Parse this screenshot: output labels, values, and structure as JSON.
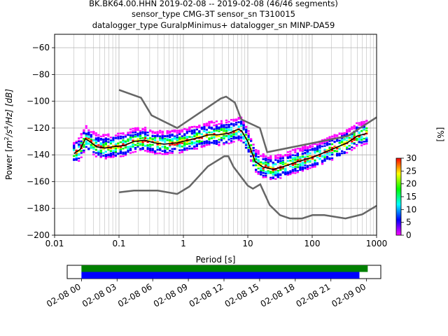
{
  "title_lines": [
    "BK.BK64.00.HHN   2019-02-08 -- 2019-02-08  (46/46 segments)",
    "sensor_type CMG-3T sensor_sn T310015",
    "datalogger_type GuralpMinimus+ datalogger_sn MINP-DA59"
  ],
  "chart_data": {
    "type": "heatmap",
    "xlabel": "Period [s]",
    "ylabel_parts": {
      "main": "Power [",
      "m2": "m",
      "sup2": "2",
      "s": "/s",
      "sup4": "4",
      "hz": "/Hz] [dB]"
    },
    "xscale": "log",
    "xlim": [
      0.01,
      1000
    ],
    "ylim": [
      -200,
      -50
    ],
    "x_ticks": [
      0.01,
      0.1,
      1,
      10,
      100,
      1000
    ],
    "x_tick_labels": [
      "0.01",
      "0.1",
      "1",
      "10",
      "100",
      "1000"
    ],
    "y_ticks": [
      -200,
      -180,
      -160,
      -140,
      -120,
      -100,
      -80,
      -60
    ],
    "y_tick_labels": [
      "−200",
      "−180",
      "−160",
      "−140",
      "−120",
      "−100",
      "−80",
      "−60"
    ],
    "grid": true,
    "noise_models": {
      "color": "#666666",
      "high": [
        [
          0.1,
          -91.5
        ],
        [
          0.22,
          -97.4
        ],
        [
          0.32,
          -110.5
        ],
        [
          0.8,
          -120
        ],
        [
          3.8,
          -98
        ],
        [
          4.6,
          -96.5
        ],
        [
          6.3,
          -101
        ],
        [
          7.9,
          -113.5
        ],
        [
          15.4,
          -120
        ],
        [
          20,
          -138
        ],
        [
          354.8,
          -126
        ],
        [
          1000,
          -112
        ]
      ],
      "low": [
        [
          0.1,
          -168
        ],
        [
          0.17,
          -166.7
        ],
        [
          0.4,
          -166.7
        ],
        [
          0.8,
          -169.2
        ],
        [
          1.24,
          -163.7
        ],
        [
          2.4,
          -148.6
        ],
        [
          4.3,
          -141.1
        ],
        [
          5,
          -141.1
        ],
        [
          6,
          -149
        ],
        [
          10,
          -163
        ],
        [
          12,
          -165.3
        ],
        [
          15.6,
          -162
        ],
        [
          21.9,
          -177.5
        ],
        [
          31.6,
          -185
        ],
        [
          45,
          -187.5
        ],
        [
          70,
          -187.5
        ],
        [
          101,
          -185
        ],
        [
          154,
          -185
        ],
        [
          328,
          -187.5
        ],
        [
          600,
          -184.4
        ],
        [
          1000,
          -178
        ]
      ]
    },
    "mode_curve": {
      "color": "#000000",
      "points": [
        [
          0.02,
          -139
        ],
        [
          0.025,
          -136
        ],
        [
          0.03,
          -128
        ],
        [
          0.035,
          -130
        ],
        [
          0.045,
          -134
        ],
        [
          0.06,
          -135
        ],
        [
          0.08,
          -134
        ],
        [
          0.12,
          -133
        ],
        [
          0.17,
          -130
        ],
        [
          0.25,
          -129
        ],
        [
          0.35,
          -131
        ],
        [
          0.5,
          -132
        ],
        [
          0.8,
          -131
        ],
        [
          1.2,
          -129
        ],
        [
          1.8,
          -127
        ],
        [
          2.5,
          -125
        ],
        [
          3.5,
          -125
        ],
        [
          5,
          -124
        ],
        [
          7,
          -121
        ],
        [
          8,
          -122
        ],
        [
          10,
          -130
        ],
        [
          13,
          -145
        ],
        [
          17,
          -149
        ],
        [
          25,
          -151
        ],
        [
          40,
          -148
        ],
        [
          60,
          -145
        ],
        [
          100,
          -142
        ],
        [
          200,
          -136
        ],
        [
          350,
          -131
        ],
        [
          500,
          -126
        ],
        [
          700,
          -124
        ]
      ]
    },
    "spread_band": {
      "upper_offset_db": 10,
      "lower_offset_db": 8
    },
    "colorbar": {
      "label": "[%]",
      "min": 0,
      "max": 30,
      "ticks": [
        0,
        5,
        10,
        15,
        20,
        25,
        30
      ],
      "tick_labels": [
        "0",
        "5",
        "10",
        "15",
        "20",
        "25",
        "30"
      ],
      "colors": [
        "#ffffff",
        "#ff00ff",
        "#0000ff",
        "#00ffff",
        "#00ff00",
        "#ffff00",
        "#ff0000",
        "#000000"
      ]
    }
  },
  "timeline": {
    "tick_labels": [
      "02-08 00",
      "02-08 03",
      "02-08 06",
      "02-08 09",
      "02-08 12",
      "02-08 15",
      "02-08 18",
      "02-08 21",
      "02-09 00"
    ],
    "bars": [
      {
        "name": "data-coverage",
        "color": "#008000",
        "start_hour": 0,
        "end_hour": 24.1
      },
      {
        "name": "psd-coverage",
        "color": "#0000ff",
        "start_hour": 0,
        "end_hour": 23.4
      }
    ],
    "xlim_hours": [
      -1.2,
      25.2
    ]
  }
}
